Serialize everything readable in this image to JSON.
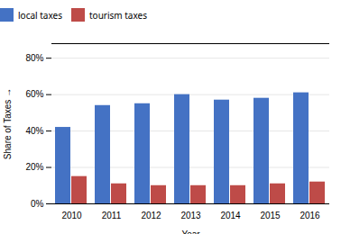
{
  "chart_data": {
    "type": "bar",
    "categories": [
      "2010",
      "2011",
      "2012",
      "2013",
      "2014",
      "2015",
      "2016"
    ],
    "series": [
      {
        "name": "local taxes",
        "color": "#4472C4",
        "values": [
          0.42,
          0.54,
          0.55,
          0.6,
          0.57,
          0.58,
          0.61
        ]
      },
      {
        "name": "tourism taxes",
        "color": "#BE4B48",
        "values": [
          0.15,
          0.11,
          0.1,
          0.1,
          0.1,
          0.11,
          0.12
        ]
      }
    ],
    "xlabel": "Year",
    "ylabel": "Share of Taxes",
    "ylim": [
      0,
      0.88
    ],
    "yticks": [
      {
        "value": 0.0,
        "label": "0%"
      },
      {
        "value": 0.2,
        "label": "20%"
      },
      {
        "value": 0.4,
        "label": "40%"
      },
      {
        "value": 0.6,
        "label": "60%"
      },
      {
        "value": 0.8,
        "label": "80%"
      }
    ],
    "grid": true,
    "legend": "top"
  }
}
